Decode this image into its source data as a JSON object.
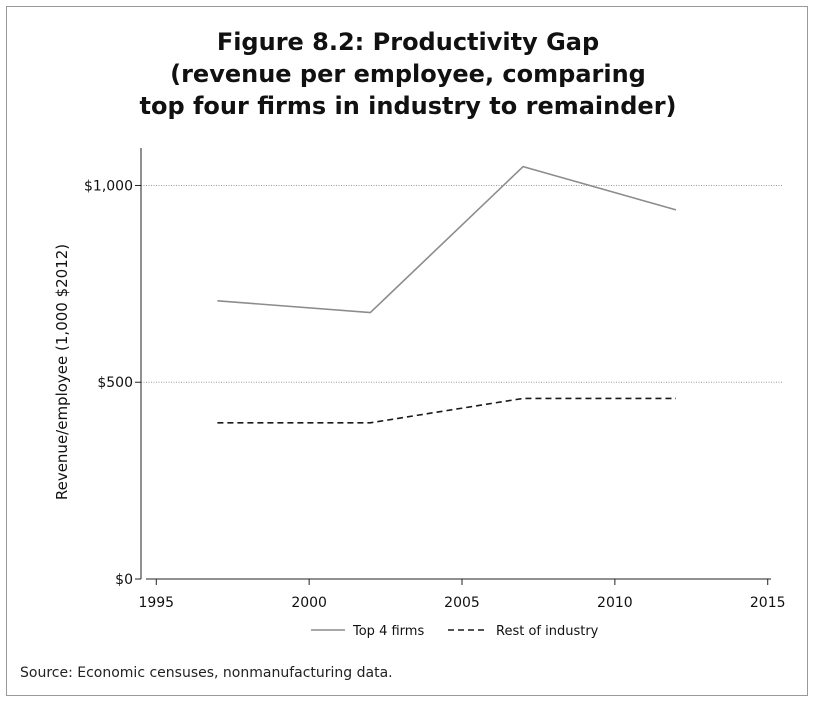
{
  "chart_data": {
    "type": "line",
    "title": [
      "Figure 8.2: Productivity Gap",
      "(revenue per employee, comparing",
      "top four firms in industry to remainder)"
    ],
    "ylabel": "Revenue/employee (1,000 $2012)",
    "xlabel": "",
    "xlim": [
      1994.5,
      2015.5
    ],
    "ylim": [
      0,
      1080
    ],
    "x_ticks": [
      1995,
      2000,
      2005,
      2010,
      2015
    ],
    "y_ticks": [
      0,
      500,
      1000
    ],
    "y_tick_labels": [
      "$0",
      "$500",
      "$1,000"
    ],
    "grid": "horizontal dotted",
    "legend_position": "bottom-center",
    "series": [
      {
        "name": "Top 4 firms",
        "style": "solid",
        "color": "#8c8c8c",
        "x": [
          1997,
          2002,
          2007,
          2012
        ],
        "y": [
          707,
          677,
          1048,
          938
        ]
      },
      {
        "name": "Rest of industry",
        "style": "dashed",
        "color": "#1a1a1a",
        "x": [
          1997,
          2002,
          2007,
          2012
        ],
        "y": [
          397,
          397,
          459,
          459
        ]
      }
    ]
  },
  "source": "Source: Economic censuses, nonmanufacturing data."
}
